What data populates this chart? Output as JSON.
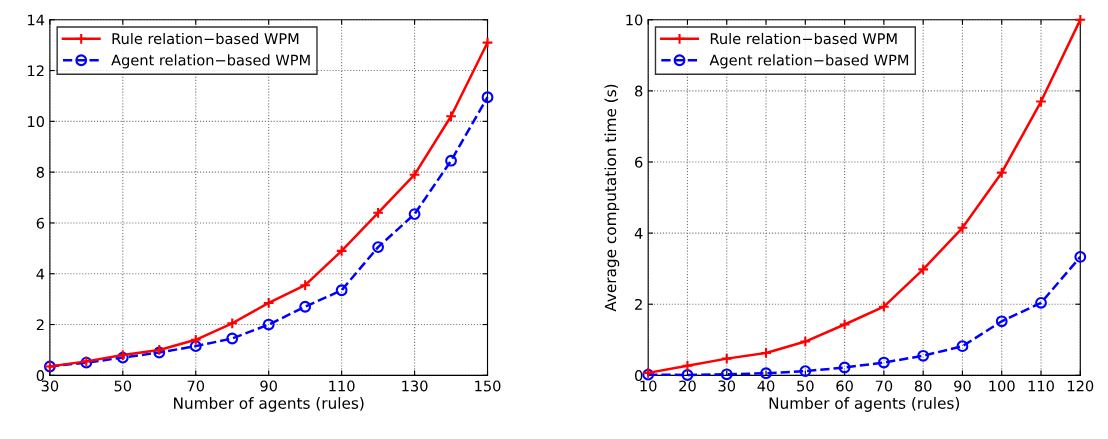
{
  "chart_data": [
    {
      "type": "line",
      "xlabel": "Number of agents (rules)",
      "x": [
        30,
        40,
        50,
        60,
        70,
        80,
        90,
        100,
        110,
        120,
        130,
        140,
        150
      ],
      "xlim": [
        30,
        150
      ],
      "xticks": [
        30,
        50,
        70,
        90,
        110,
        130,
        150
      ],
      "ylim": [
        0,
        14
      ],
      "yticks": [
        0,
        2,
        4,
        6,
        8,
        10,
        12,
        14
      ],
      "grid": true,
      "legend": "top left",
      "series": [
        {
          "name": "Rule relation−based WPM",
          "color": "#ff0000",
          "marker": "cross",
          "line_style": "solid",
          "values": [
            0.35,
            0.55,
            0.8,
            1.0,
            1.4,
            2.05,
            2.85,
            3.55,
            4.9,
            6.4,
            7.9,
            10.2,
            13.1
          ]
        },
        {
          "name": "Agent relation−based WPM",
          "color": "#0000ff",
          "marker": "circle",
          "line_style": "dashed",
          "values": [
            0.35,
            0.5,
            0.7,
            0.9,
            1.15,
            1.45,
            2.0,
            2.7,
            3.35,
            5.05,
            6.35,
            8.45,
            10.95
          ]
        }
      ]
    },
    {
      "type": "line",
      "xlabel": "Number of agents (rules)",
      "ylabel": "Average computation time (s)",
      "x": [
        10,
        20,
        30,
        40,
        50,
        60,
        70,
        80,
        90,
        100,
        110,
        120
      ],
      "xlim": [
        10,
        120
      ],
      "xticks": [
        10,
        20,
        30,
        40,
        50,
        60,
        70,
        80,
        90,
        100,
        110,
        120
      ],
      "ylim": [
        0,
        10
      ],
      "yticks": [
        0,
        2,
        4,
        6,
        8,
        10
      ],
      "grid": true,
      "legend": "top left",
      "series": [
        {
          "name": "Rule relation−based WPM",
          "color": "#ff0000",
          "marker": "cross",
          "line_style": "solid",
          "values": [
            0.07,
            0.27,
            0.47,
            0.63,
            0.95,
            1.43,
            1.93,
            2.98,
            4.15,
            5.7,
            7.7,
            10.0
          ]
        },
        {
          "name": "Agent relation−based WPM",
          "color": "#0000ff",
          "marker": "circle",
          "line_style": "dashed",
          "values": [
            0.02,
            0.01,
            0.03,
            0.06,
            0.12,
            0.22,
            0.36,
            0.55,
            0.82,
            1.52,
            2.04,
            3.33
          ]
        }
      ]
    }
  ]
}
